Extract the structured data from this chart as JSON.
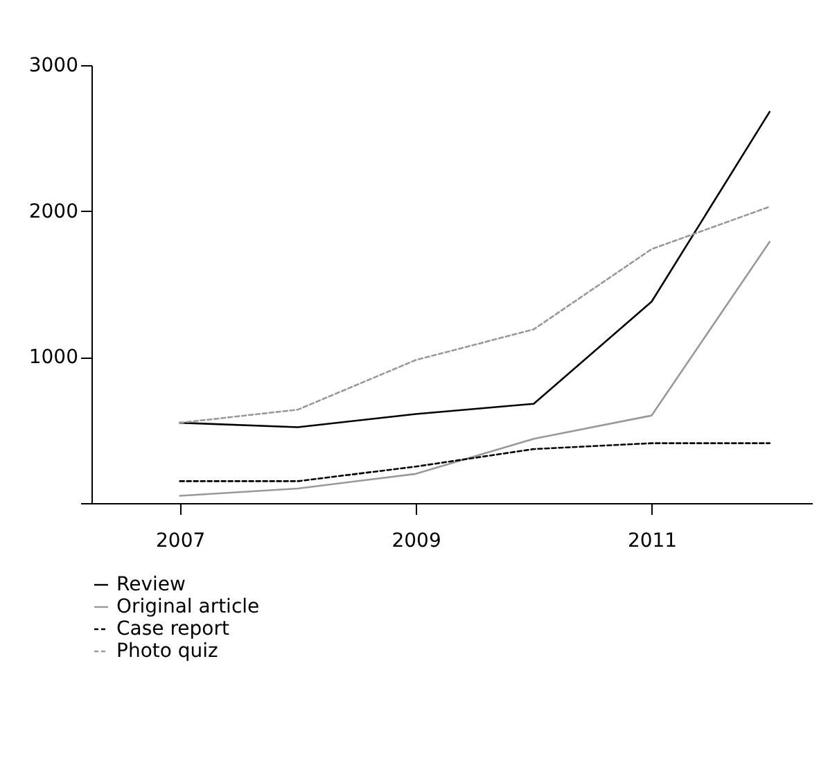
{
  "chart_data": {
    "type": "line",
    "x": [
      2007,
      2008,
      2009,
      2010,
      2011,
      2012
    ],
    "xlim": [
      2006.25,
      2012.36
    ],
    "xticks": [
      2007,
      2009,
      2011
    ],
    "ylim": [
      0,
      3000
    ],
    "yticks": [
      {
        "value": 0,
        "label": null
      },
      1000,
      2000,
      3000
    ],
    "grid": false,
    "legend": "bottom",
    "marker": "none",
    "series": [
      {
        "name": "Review",
        "color": "#000000",
        "line_style": "solid",
        "values": [
          550,
          520,
          610,
          680,
          1380,
          2680
        ]
      },
      {
        "name": "Original article",
        "color": "#999999",
        "line_style": "solid",
        "values": [
          50,
          100,
          200,
          440,
          600,
          1790
        ]
      },
      {
        "name": "Case report",
        "color": "#000000",
        "line_style": "dashed",
        "values": [
          150,
          150,
          250,
          370,
          410,
          410
        ]
      },
      {
        "name": "Photo quiz",
        "color": "#999999",
        "line_style": "dashed",
        "values": [
          550,
          640,
          980,
          1190,
          1740,
          2030
        ]
      }
    ]
  }
}
